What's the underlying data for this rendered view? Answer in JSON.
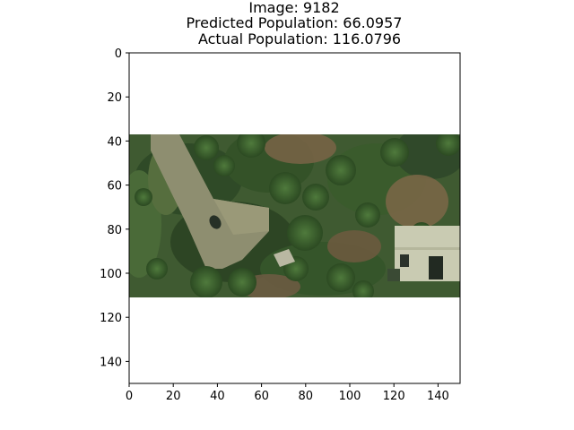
{
  "chart_data": {
    "type": "image",
    "title_lines": [
      "Image: 9182",
      "Predicted Population: 66.0957",
      "Actual Population: 116.0796"
    ],
    "xlim": [
      0,
      150
    ],
    "ylim": [
      150,
      0
    ],
    "y_inverted": true,
    "xticks": [
      0,
      20,
      40,
      60,
      80,
      100,
      120,
      140
    ],
    "yticks": [
      0,
      20,
      40,
      60,
      80,
      100,
      120,
      140
    ],
    "image_extent": {
      "x": [
        0,
        150
      ],
      "y": [
        37,
        111
      ]
    },
    "image_features": [
      "aerial photo",
      "dirt road",
      "trees",
      "house with light roof",
      "small shed",
      "vehicle on road"
    ],
    "grid": false
  }
}
